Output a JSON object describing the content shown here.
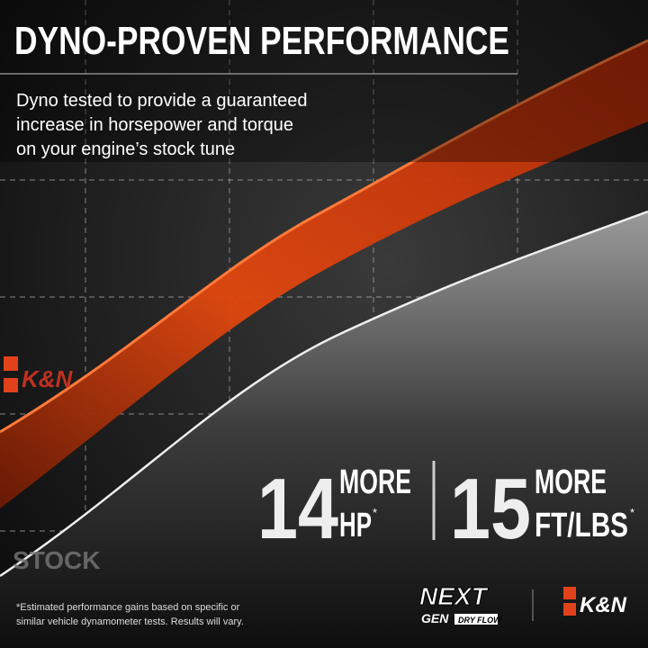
{
  "header": {
    "title": "DYNO-PROVEN PERFORMANCE",
    "subtitle": [
      "Dyno tested to provide a guaranteed",
      "increase in horsepower and torque",
      "on your engine’s stock tune"
    ]
  },
  "stats": [
    {
      "number": "14",
      "word": "MORE",
      "unit": "HP",
      "mark": "*"
    },
    {
      "number": "15",
      "word": "MORE",
      "unit": "FT/LBS",
      "mark": "*"
    }
  ],
  "curve_label": "STOCK",
  "footnote": [
    "*Estimated performance gains based on specific or",
    "similar vehicle dynamometer tests. Results will vary."
  ],
  "logos": {
    "brand": "K&N",
    "next_top": "NEXT",
    "next_bottom": "GEN",
    "dryflow": "DRY FLOW"
  }
}
